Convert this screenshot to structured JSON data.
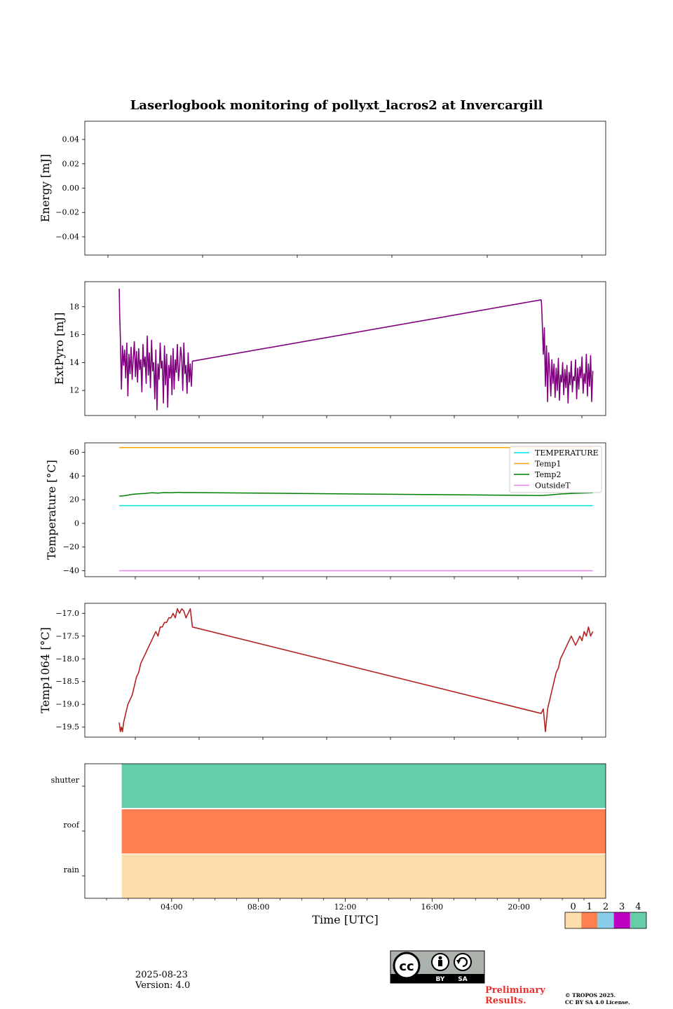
{
  "figure": {
    "title": "Laserlogbook monitoring of pollyxt_lacros2 at Invercargill",
    "date": "2025-08-23",
    "version": "Version: 4.0",
    "preliminary_line1": "Preliminary",
    "preliminary_line2": "Results.",
    "copyright_line1": "© TROPOS 2025.",
    "copyright_line2": "CC BY SA 4.0 License.",
    "license_badge": "cc-by-sa-icon"
  },
  "chart_data": [
    {
      "type": "line",
      "ylabel": "Energy [mJ]",
      "ylim": [
        -0.055,
        0.055
      ],
      "yticks": [
        0.04,
        0.02,
        0.0,
        -0.02,
        -0.04
      ],
      "ytick_labels": [
        "0.04",
        "0.02",
        "0.00",
        "−0.02",
        "−0.04"
      ],
      "series": []
    },
    {
      "type": "line",
      "ylabel": "ExtPyro [mJ]",
      "ylim": [
        10.2,
        19.8
      ],
      "yticks": [
        12,
        14,
        16,
        18
      ],
      "ytick_labels": [
        "12",
        "14",
        "16",
        "18"
      ],
      "series": [
        {
          "color": "#800080",
          "x": [
            1.0,
            1.02,
            1.05,
            1.1,
            1.15,
            1.2,
            1.25,
            1.3,
            1.35,
            1.4,
            1.45,
            1.5,
            1.55,
            1.6,
            1.65,
            1.7,
            1.75,
            1.8,
            1.85,
            1.9,
            1.95,
            2.0,
            2.05,
            2.1,
            2.15,
            2.2,
            2.25,
            2.3,
            2.35,
            2.4,
            2.45,
            2.5,
            2.55,
            2.6,
            2.65,
            2.7,
            2.75,
            2.8,
            2.85,
            2.9,
            2.95,
            3.0,
            3.05,
            3.1,
            3.15,
            3.2,
            3.25,
            3.3,
            3.35,
            3.4,
            3.45,
            3.5,
            3.55,
            3.6,
            3.65,
            3.7,
            3.75,
            3.8,
            3.85,
            3.9,
            3.95,
            4.0,
            4.05,
            4.1,
            4.15,
            4.2,
            4.25,
            4.3,
            4.35,
            4.4,
            20.6,
            20.62,
            20.65,
            20.7,
            20.75,
            20.8,
            20.85,
            20.9,
            20.95,
            21.0,
            21.05,
            21.1,
            21.15,
            21.2,
            21.25,
            21.3,
            21.35,
            21.4,
            21.45,
            21.5,
            21.55,
            21.6,
            21.65,
            21.7,
            21.75,
            21.8,
            21.85,
            21.9,
            21.95,
            22.0,
            22.05,
            22.1,
            22.15,
            22.2,
            22.25,
            22.3,
            22.35,
            22.4,
            22.45,
            22.5,
            22.55,
            22.6,
            22.65,
            22.7,
            22.75,
            22.8,
            22.85,
            22.9,
            22.95,
            23.0
          ],
          "y": [
            19.3,
            17.5,
            15.8,
            12.1,
            15.2,
            13.8,
            14.9,
            12.9,
            15.4,
            11.6,
            14.6,
            13.2,
            15.1,
            12.8,
            14.3,
            15.5,
            13.0,
            14.8,
            12.6,
            15.0,
            13.5,
            14.2,
            11.9,
            15.3,
            13.7,
            14.4,
            12.5,
            15.9,
            13.1,
            14.7,
            12.2,
            15.6,
            13.4,
            14.0,
            11.4,
            14.9,
            10.6,
            13.9,
            12.8,
            15.4,
            13.6,
            14.1,
            11.1,
            15.2,
            12.4,
            14.6,
            10.8,
            13.8,
            12.9,
            14.5,
            11.7,
            15.0,
            12.1,
            14.2,
            13.3,
            15.3,
            12.7,
            13.6,
            15.1,
            14.4,
            12.0,
            15.4,
            13.2,
            13.8,
            11.8,
            14.7,
            12.6,
            13.9,
            12.3,
            14.1,
            18.5,
            18.2,
            17.0,
            14.6,
            16.5,
            12.3,
            15.2,
            11.2,
            14.7,
            13.4,
            11.6,
            14.2,
            12.5,
            13.9,
            11.5,
            13.6,
            12.0,
            14.3,
            11.3,
            13.1,
            12.6,
            14.0,
            11.7,
            13.5,
            12.2,
            13.8,
            11.1,
            13.3,
            12.4,
            14.1,
            11.9,
            13.0,
            12.7,
            14.2,
            11.4,
            13.6,
            12.1,
            13.7,
            12.9,
            14.4,
            11.8,
            13.2,
            12.5,
            14.6,
            11.6,
            13.9,
            12.3,
            14.5,
            11.2,
            13.4
          ]
        }
      ]
    },
    {
      "type": "line",
      "ylabel": "Temperature [°C]",
      "ylim": [
        -45,
        68
      ],
      "yticks": [
        60,
        40,
        20,
        0,
        -20,
        -40
      ],
      "ytick_labels": [
        "60",
        "40",
        "20",
        "0",
        "−20",
        "−40"
      ],
      "legend_position": "top-right",
      "series": [
        {
          "name": "TEMPERATURE",
          "color": "#00e5e5",
          "x": [
            1.0,
            2.2,
            2.25,
            4.4,
            20.6,
            23.0
          ],
          "y": [
            15,
            15,
            15,
            15,
            15,
            15
          ]
        },
        {
          "name": "Temp1",
          "color": "#ffa500",
          "x": [
            1.0,
            4.4,
            20.6,
            23.0
          ],
          "y": [
            64,
            64,
            64,
            64
          ]
        },
        {
          "name": "Temp2",
          "color": "#008000",
          "x": [
            1.0,
            1.3,
            1.6,
            1.9,
            2.2,
            2.5,
            2.8,
            3.1,
            3.4,
            3.7,
            4.0,
            4.4,
            20.6,
            21.0,
            21.5,
            22.0,
            22.5,
            23.0
          ],
          "y": [
            23,
            23.5,
            24.5,
            25,
            25.3,
            25.8,
            25.5,
            26,
            25.8,
            26.2,
            26,
            26,
            23.5,
            24,
            24.8,
            25.2,
            25.5,
            25.8
          ]
        },
        {
          "name": "OutsideT",
          "color": "#ee82ee",
          "x": [
            1.0,
            4.4,
            20.6,
            23.0
          ],
          "y": [
            -40,
            -40,
            -40,
            -40
          ]
        }
      ]
    },
    {
      "type": "line",
      "ylabel": "Temp1064 [°C]",
      "ylim": [
        -19.72,
        -16.78
      ],
      "yticks": [
        -17.0,
        -17.5,
        -18.0,
        -18.5,
        -19.0,
        -19.5
      ],
      "ytick_labels": [
        "−17.0",
        "−17.5",
        "−18.0",
        "−18.5",
        "−19.0",
        "−19.5"
      ],
      "series": [
        {
          "color": "#b22222",
          "x": [
            1.0,
            1.05,
            1.1,
            1.15,
            1.2,
            1.3,
            1.4,
            1.5,
            1.6,
            1.7,
            1.8,
            1.9,
            2.0,
            2.1,
            2.2,
            2.3,
            2.4,
            2.5,
            2.6,
            2.7,
            2.8,
            2.9,
            3.0,
            3.1,
            3.2,
            3.3,
            3.4,
            3.5,
            3.6,
            3.7,
            3.8,
            3.9,
            4.0,
            4.1,
            4.2,
            4.3,
            4.4,
            20.6,
            20.7,
            20.8,
            20.9,
            21.0,
            21.1,
            21.2,
            21.3,
            21.4,
            21.5,
            21.6,
            21.7,
            21.8,
            21.9,
            22.0,
            22.1,
            22.2,
            22.3,
            22.4,
            22.5,
            22.6,
            22.7,
            22.8,
            22.9,
            23.0
          ],
          "y": [
            -19.4,
            -19.6,
            -19.5,
            -19.6,
            -19.4,
            -19.2,
            -19.0,
            -18.9,
            -18.8,
            -18.6,
            -18.4,
            -18.3,
            -18.1,
            -18.0,
            -17.9,
            -17.8,
            -17.7,
            -17.6,
            -17.5,
            -17.4,
            -17.5,
            -17.3,
            -17.3,
            -17.2,
            -17.2,
            -17.1,
            -17.1,
            -17.0,
            -17.1,
            -16.9,
            -17.0,
            -16.9,
            -16.95,
            -17.1,
            -17.0,
            -16.9,
            -17.3,
            -19.2,
            -19.1,
            -19.6,
            -19.1,
            -18.9,
            -18.7,
            -18.5,
            -18.3,
            -18.2,
            -18.0,
            -17.9,
            -17.8,
            -17.7,
            -17.6,
            -17.5,
            -17.6,
            -17.7,
            -17.6,
            -17.5,
            -17.6,
            -17.4,
            -17.5,
            -17.3,
            -17.5,
            -17.4
          ]
        }
      ]
    },
    {
      "type": "heatmap",
      "categories": [
        "shutter",
        "roof",
        "rain"
      ],
      "status_start_x": 1.7,
      "status_end_x": 24.0,
      "values": [
        4,
        1,
        0
      ],
      "colorbar": {
        "labels": [
          "0",
          "1",
          "2",
          "3",
          "4"
        ],
        "colors": [
          "#fddeaa",
          "#ff7f50",
          "#87ceeb",
          "#c000c0",
          "#66cdaa"
        ]
      }
    }
  ],
  "time_axis": {
    "xlabel": "Time [UTC]",
    "xlim": [
      0.0,
      24.0
    ],
    "tick_hours": [
      4,
      8,
      12,
      16,
      20
    ],
    "tick_labels": [
      "04:00",
      "08:00",
      "12:00",
      "16:00",
      "20:00"
    ],
    "minor_tick_hours": [
      1,
      2,
      3,
      5,
      6,
      7,
      9,
      10,
      11,
      13,
      14,
      15,
      17,
      18,
      19,
      21,
      22,
      23
    ],
    "panel_tick_hours": [
      1.1,
      5.5,
      9.9,
      14.3,
      18.7,
      23.0
    ]
  }
}
